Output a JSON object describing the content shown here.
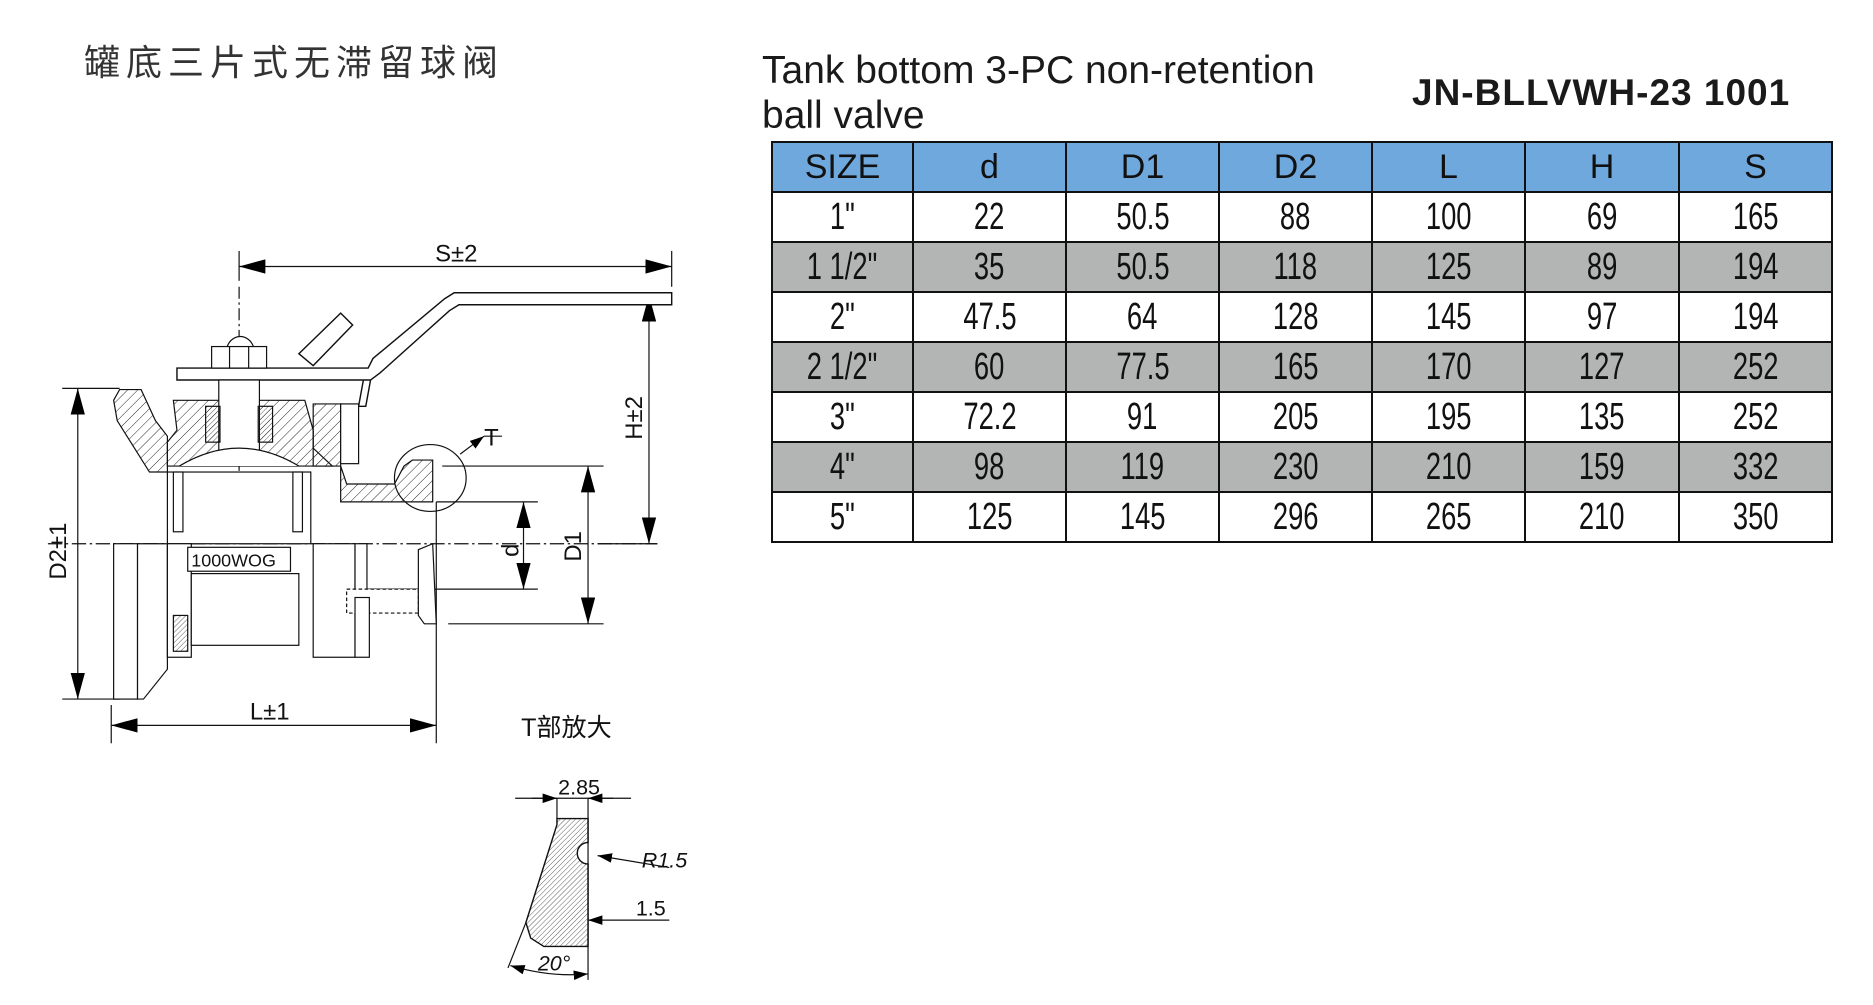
{
  "title_cn": "罐底三片式无滞留球阀",
  "title_en_line1": "Tank bottom 3-PC non-retention",
  "title_en_line2": "ball valve",
  "model": "JN-BLLVWH-23 1001",
  "table": {
    "headers": [
      "SIZE",
      "d",
      "D1",
      "D2",
      "L",
      "H",
      "S"
    ],
    "rows": [
      [
        "1\"",
        "22",
        "50.5",
        "88",
        "100",
        "69",
        "165"
      ],
      [
        "1 1/2\"",
        "35",
        "50.5",
        "118",
        "125",
        "89",
        "194"
      ],
      [
        "2\"",
        "47.5",
        "64",
        "128",
        "145",
        "97",
        "194"
      ],
      [
        "2 1/2\"",
        "60",
        "77.5",
        "165",
        "170",
        "127",
        "252"
      ],
      [
        "3\"",
        "72.2",
        "91",
        "205",
        "195",
        "135",
        "252"
      ],
      [
        "4\"",
        "98",
        "119",
        "230",
        "210",
        "159",
        "332"
      ],
      [
        "5\"",
        "125",
        "145",
        "296",
        "265",
        "210",
        "350"
      ]
    ]
  },
  "drawing": {
    "dim_s": "S±2",
    "dim_h": "H±2",
    "dim_d2": "D2±1",
    "dim_l": "L±1",
    "dim_d": "d",
    "dim_d1": "D1",
    "detail_marker": "T",
    "pressure_label": "1000WOG",
    "detail_title": "T部放大",
    "detail_width": "2.85",
    "detail_radius": "R1.5",
    "detail_depth": "1.5",
    "detail_angle": "20°"
  },
  "colors": {
    "header_bg": "#6fa8dc",
    "alt_row_bg": "#b3b5b5"
  }
}
